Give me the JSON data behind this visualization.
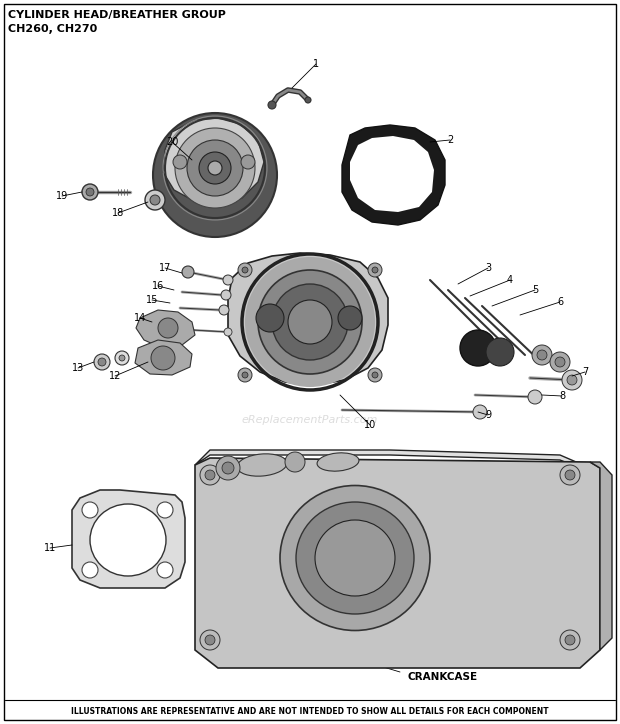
{
  "title_line1": "CYLINDER HEAD/BREATHER GROUP",
  "title_line2": "CH260, CH270",
  "footer_text": "ILLUSTRATIONS ARE REPRESENTATIVE AND ARE NOT INTENDED TO SHOW ALL DETAILS FOR EACH COMPONENT",
  "bg_color": "#ffffff",
  "title_color": "#000000",
  "footer_color": "#000000",
  "fig_width": 6.2,
  "fig_height": 7.24,
  "dpi": 100,
  "watermark_text": "eReplacementParts.com",
  "label_fontsize": 7.0,
  "title_fontsize": 8.0,
  "footer_fontsize": 5.5
}
